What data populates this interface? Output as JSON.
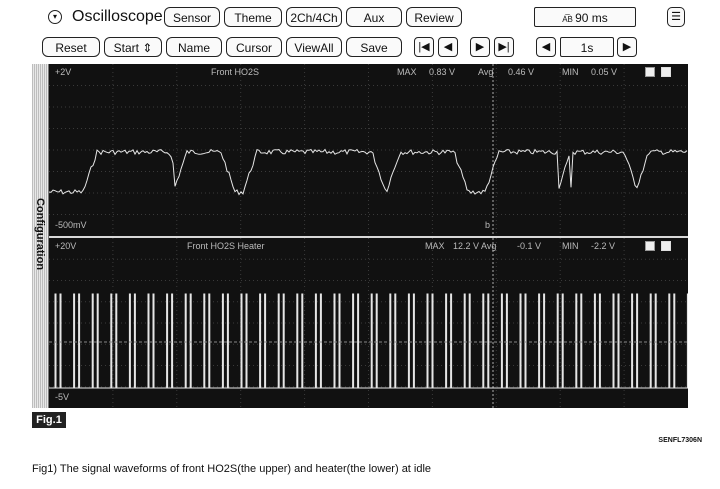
{
  "toolbar1": {
    "app_title": "Oscilloscope",
    "buttons": [
      "Sensor",
      "Theme",
      "2Ch/4Ch",
      "Aux",
      "Review"
    ],
    "sample_rate": "90 ms",
    "sample_icon": "ab-arrows-icon"
  },
  "toolbar2": {
    "buttons": [
      "Reset",
      "Start",
      "Name",
      "Cursor",
      "ViewAll",
      "Save"
    ],
    "start_arrow": "⇕",
    "time_div": "1s"
  },
  "sidebar": {
    "label": "Configuration"
  },
  "channel1": {
    "top_scale": "+2V",
    "bottom_scale": "-500mV",
    "name": "Front HO2S",
    "max_label": "MAX",
    "max_value": "0.83 V",
    "avg_label": "Avg",
    "avg_value": "0.46 V",
    "min_label": "MIN",
    "min_value": "0.05 V",
    "cursor_label": "b"
  },
  "channel2": {
    "top_scale": "+20V",
    "bottom_scale": "-5V",
    "name": "Front HO2S Heater",
    "max_label": "MAX",
    "max_value": "12.2 V",
    "avg_label": "Avg",
    "avg_value": "-0.1 V",
    "min_label": "MIN",
    "min_value": "-2.2 V"
  },
  "footer": {
    "fig_tag": "Fig.1",
    "code": "SENFL7306N",
    "caption": "Fig1) The signal waveforms of front HO2S(the upper) and heater(the lower) at idle"
  },
  "colors": {
    "screen_bg": "#111111",
    "trace": "#e6e6e6",
    "grid": "#3a3a3a"
  }
}
